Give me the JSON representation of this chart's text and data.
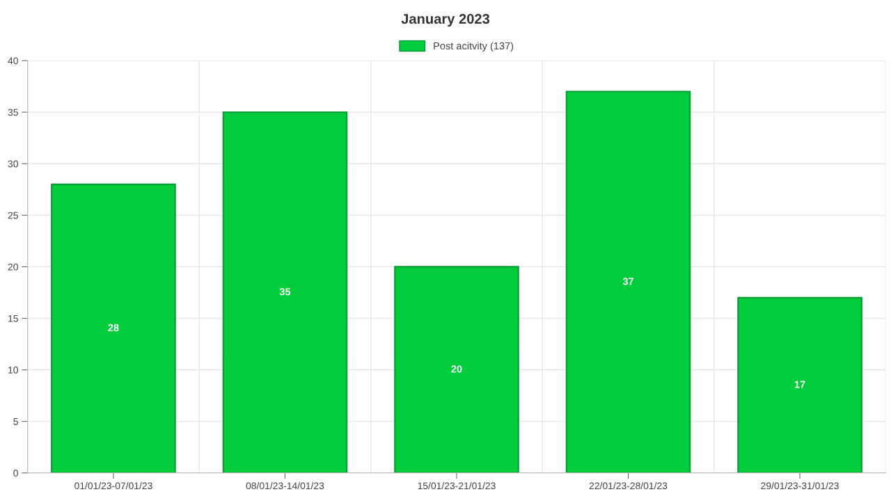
{
  "chart_data": {
    "type": "bar",
    "title": "January 2023",
    "categories": [
      "01/01/23-07/01/23",
      "08/01/23-14/01/23",
      "15/01/23-21/01/23",
      "22/01/23-28/01/23",
      "29/01/23-31/01/23"
    ],
    "series": [
      {
        "name": "Post acitvity (137)",
        "color": "#00cc3c",
        "values": [
          28,
          35,
          20,
          37,
          17
        ]
      }
    ],
    "ylim": [
      0,
      40
    ],
    "yticks": [
      0,
      5,
      10,
      15,
      20,
      25,
      30,
      35,
      40
    ],
    "grid": true,
    "legend": "top",
    "data_labels": true
  }
}
